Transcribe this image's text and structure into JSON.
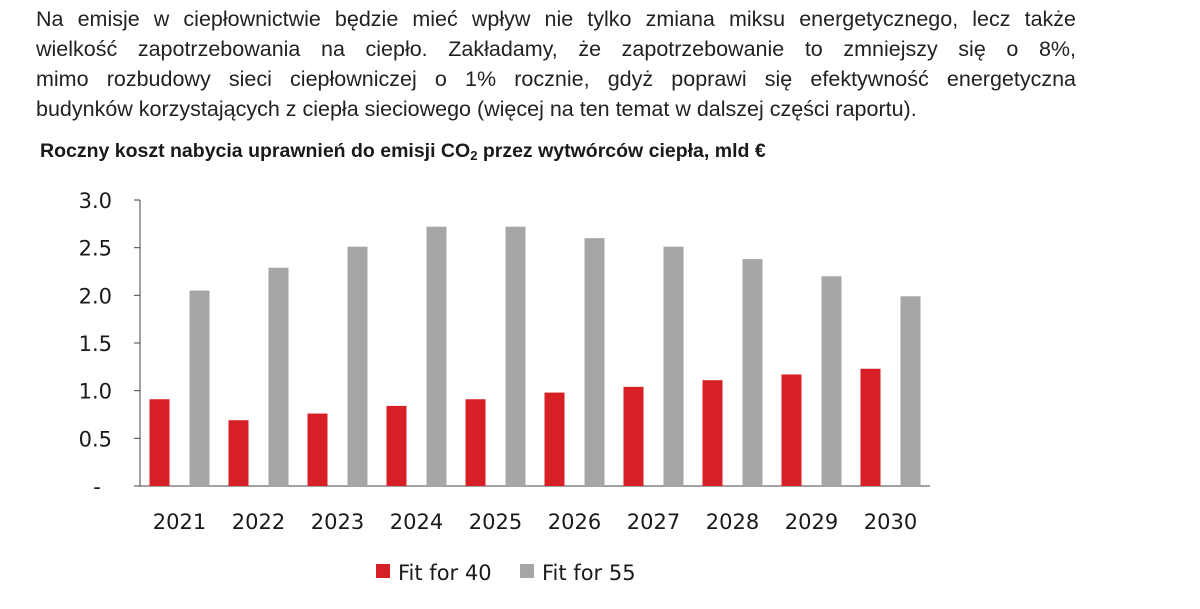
{
  "paragraph": {
    "lines": [
      "Na emisje w ciepłownictwie będzie mieć wpływ nie tylko zmiana miksu energetycznego, lecz także",
      "wielkość zapotrzebowania na ciepło. Zakładamy, że zapotrzebowanie to zmniejszy się o 8%,",
      "mimo rozbudowy sieci ciepłowniczej o 1% rocznie, gdyż poprawi się efektywność energetyczna",
      "budynków korzystających z ciepła sieciowego (więcej na ten temat w dalszej części raportu)."
    ]
  },
  "chart_data": {
    "type": "bar",
    "title": {
      "before": "Roczny koszt nabycia uprawnień do emisji CO",
      "sub": "2",
      "after": " przez wytwórców ciepła, mld €"
    },
    "categories": [
      "2021",
      "2022",
      "2023",
      "2024",
      "2025",
      "2026",
      "2027",
      "2028",
      "2029",
      "2030"
    ],
    "series": [
      {
        "name": "Fit for 40",
        "color": "#d71f26",
        "values": [
          0.91,
          0.69,
          0.76,
          0.84,
          0.91,
          0.98,
          1.04,
          1.11,
          1.17,
          1.23
        ]
      },
      {
        "name": "Fit for 55",
        "color": "#a6a6a6",
        "values": [
          2.05,
          2.29,
          2.51,
          2.72,
          2.72,
          2.6,
          2.51,
          2.38,
          2.2,
          1.99
        ]
      }
    ],
    "ylim": [
      0,
      3.0
    ],
    "yticks": [
      {
        "value": 0,
        "label": "-"
      },
      {
        "value": 0.5,
        "label": "0.5"
      },
      {
        "value": 1.0,
        "label": "1.0"
      },
      {
        "value": 1.5,
        "label": "1.5"
      },
      {
        "value": 2.0,
        "label": "2.0"
      },
      {
        "value": 2.5,
        "label": "2.5"
      },
      {
        "value": 3.0,
        "label": "3.0"
      }
    ],
    "grid": false,
    "legend_position": "bottom"
  }
}
